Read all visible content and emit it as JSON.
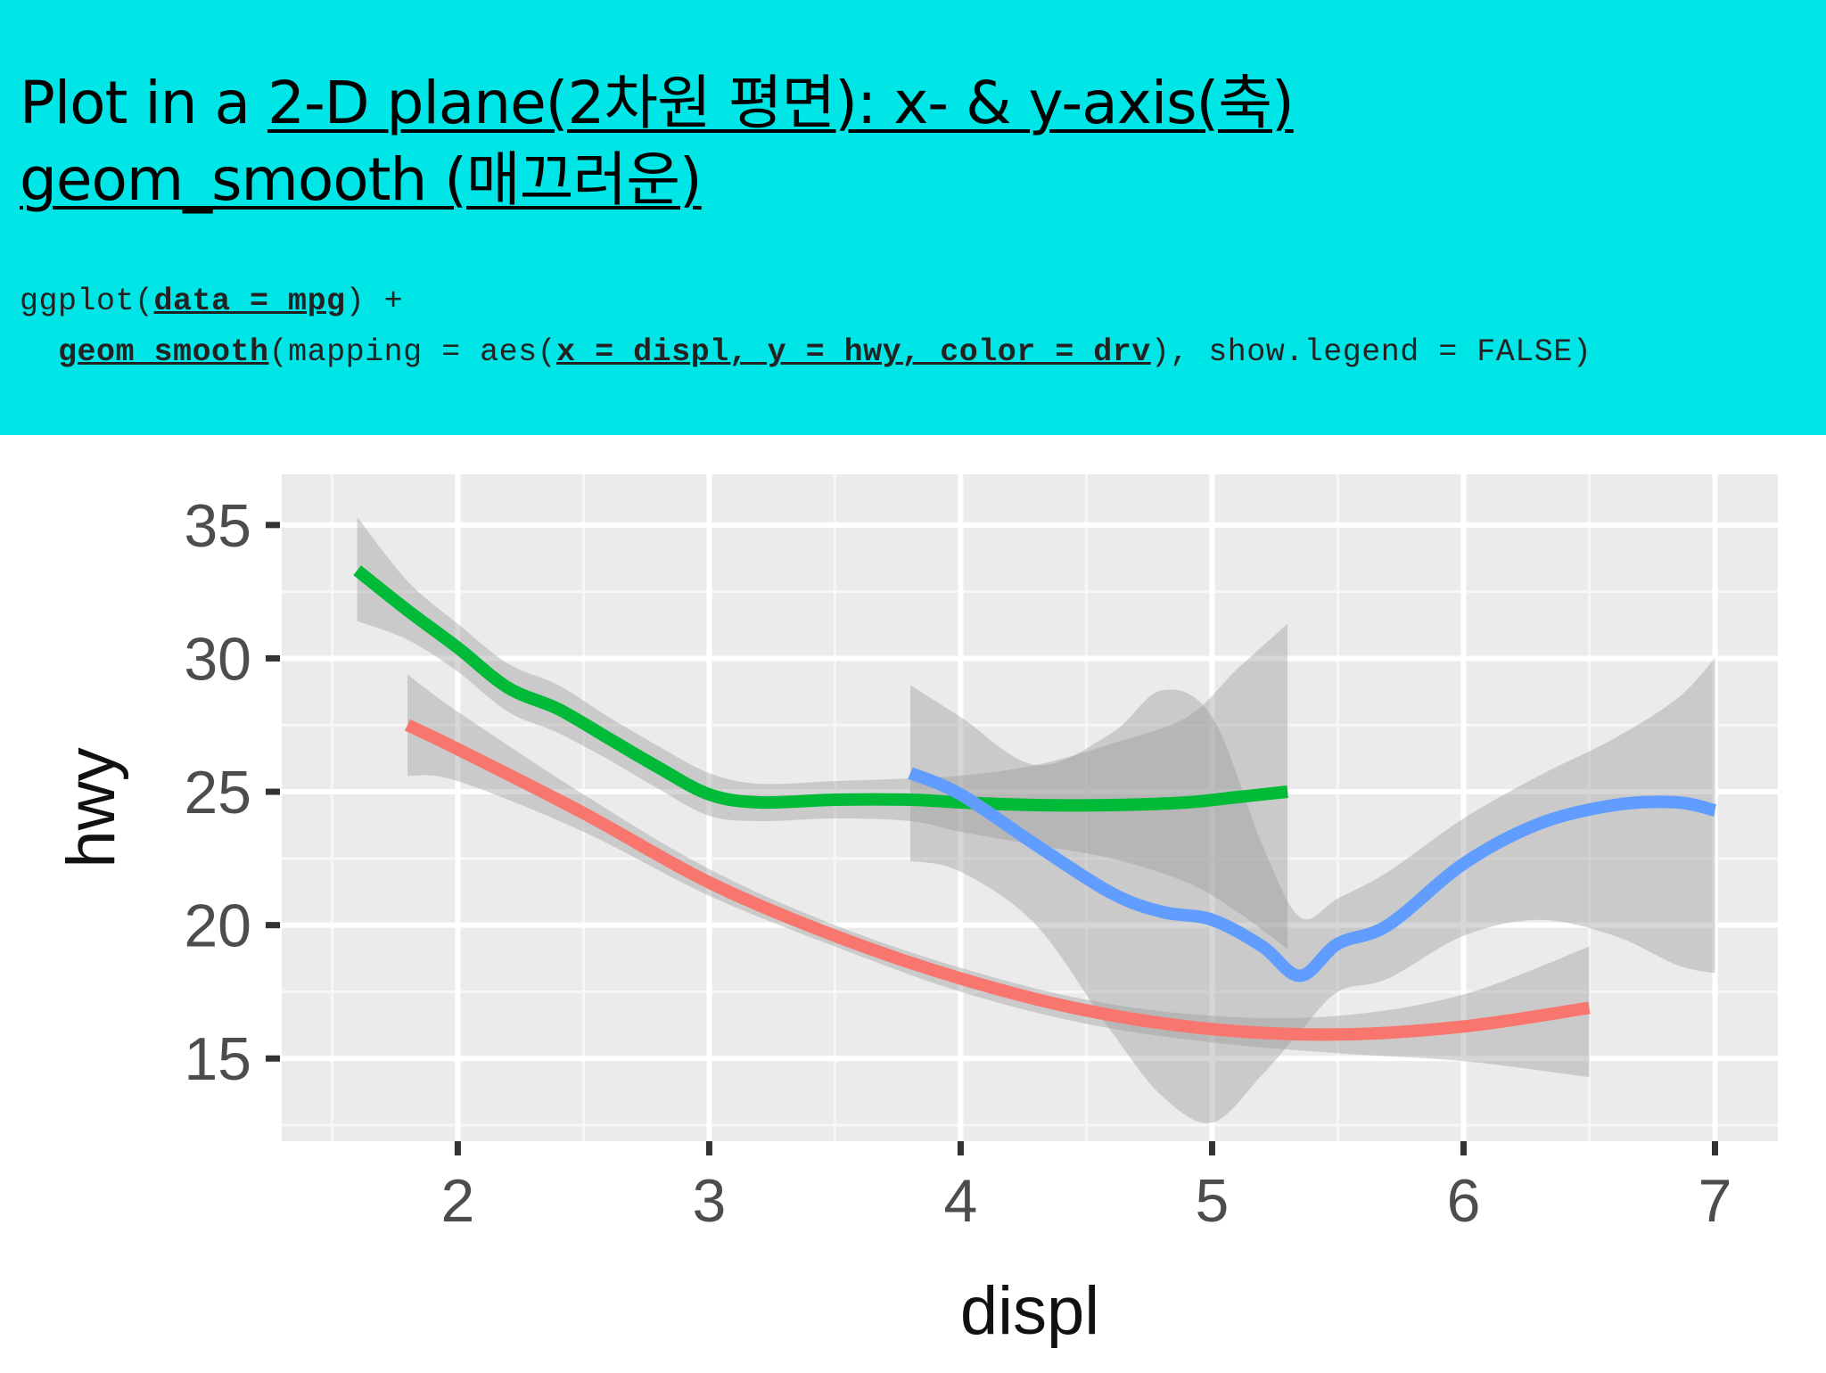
{
  "slide": {
    "title_line1": {
      "prefix": "Plot in a ",
      "underlined": "2-D plane(2차원 평면): x- & y-axis(축)"
    },
    "title_line2": "geom_smooth (매끄러운)",
    "code_line1": {
      "a": "ggplot(",
      "b": "data = mpg",
      "c": ") +"
    },
    "code_line2": {
      "a": "  ",
      "b": "geom_smooth",
      "c": "(mapping = aes(",
      "d": "x = displ, y = hwy, color = drv",
      "e": "), show.legend = FALSE)"
    }
  },
  "chart_data": {
    "type": "line",
    "xlabel": "displ",
    "ylabel": "hwy",
    "xlim": [
      1.3,
      7.25
    ],
    "ylim": [
      11.9,
      36.9
    ],
    "xticks": [
      2,
      3,
      4,
      5,
      6,
      7
    ],
    "yticks": [
      15,
      20,
      25,
      30,
      35
    ],
    "grid": true,
    "legend": "none",
    "panel_background": "#ebebeb",
    "series": [
      {
        "color": "#00ba38",
        "x": [
          1.6,
          1.8,
          2.0,
          2.2,
          2.4,
          2.6,
          2.8,
          3.0,
          3.2,
          3.5,
          3.8,
          4.0,
          4.3,
          4.6,
          4.9,
          5.1,
          5.3
        ],
        "y": [
          33.3,
          31.8,
          30.4,
          28.9,
          28.1,
          27.0,
          25.9,
          24.9,
          24.6,
          24.7,
          24.7,
          24.6,
          24.5,
          24.5,
          24.6,
          24.8,
          25.0
        ],
        "band_upper": [
          35.3,
          32.9,
          31.3,
          29.8,
          29.0,
          27.8,
          26.7,
          25.7,
          25.3,
          25.4,
          25.5,
          25.6,
          26.0,
          26.8,
          27.8,
          29.6,
          31.3
        ],
        "band_lower": [
          31.4,
          30.7,
          29.5,
          28.0,
          27.2,
          26.2,
          25.1,
          24.1,
          23.9,
          24.0,
          23.9,
          23.5,
          23.0,
          22.5,
          21.6,
          20.5,
          19.1
        ]
      },
      {
        "color": "#f8766d",
        "x": [
          1.8,
          2.0,
          2.5,
          3.0,
          3.5,
          4.0,
          4.5,
          5.0,
          5.5,
          6.0,
          6.5
        ],
        "y": [
          27.5,
          26.6,
          24.2,
          21.6,
          19.6,
          18.0,
          16.8,
          16.1,
          15.9,
          16.2,
          16.9
        ],
        "band_upper": [
          29.4,
          28.0,
          24.9,
          22.1,
          20.0,
          18.4,
          17.2,
          16.6,
          16.6,
          17.4,
          19.2
        ],
        "band_lower": [
          25.6,
          25.4,
          23.5,
          21.1,
          19.2,
          17.5,
          16.3,
          15.6,
          15.2,
          14.9,
          14.3
        ]
      },
      {
        "color": "#619cff",
        "x": [
          3.8,
          4.0,
          4.3,
          4.6,
          4.8,
          5.0,
          5.2,
          5.35,
          5.5,
          5.7,
          6.0,
          6.3,
          6.6,
          6.85,
          7.0
        ],
        "y": [
          25.7,
          24.9,
          23.0,
          21.2,
          20.5,
          20.2,
          19.2,
          18.1,
          19.3,
          20.0,
          22.3,
          23.8,
          24.5,
          24.6,
          24.3
        ],
        "band_upper": [
          29.0,
          27.8,
          26.0,
          27.2,
          28.8,
          27.8,
          23.0,
          20.3,
          21.0,
          22.0,
          24.0,
          25.6,
          27.0,
          28.5,
          30.0
        ],
        "band_lower": [
          22.4,
          22.0,
          20.0,
          16.0,
          13.6,
          12.6,
          14.4,
          16.0,
          17.5,
          18.0,
          19.6,
          20.2,
          19.6,
          18.5,
          18.2
        ]
      }
    ]
  }
}
